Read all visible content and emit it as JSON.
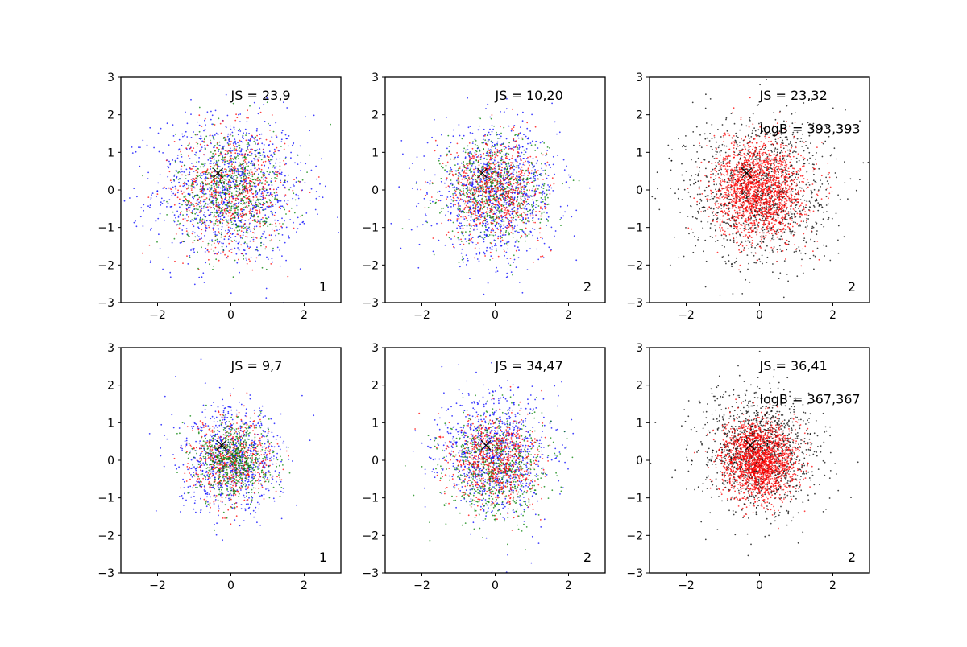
{
  "figure": {
    "background": "#ffffff"
  },
  "colors": {
    "blue": "#0000ff",
    "green": "#008000",
    "red": "#ff0000",
    "black": "#000000"
  },
  "chart_data": [
    {
      "type": "scatter",
      "xlim": [
        -3,
        3
      ],
      "ylim": [
        -3,
        3
      ],
      "xticks": [
        "−2",
        "0",
        "2"
      ],
      "yticks": [
        "−3",
        "−2",
        "−1",
        "0",
        "1",
        "2",
        "3"
      ],
      "annotations": [
        "JS = 23,9"
      ],
      "corner_label": "1",
      "marker": {
        "symbol": "x",
        "x": -0.35,
        "y": 0.45
      },
      "series": [
        {
          "color": "blue",
          "count": 1100,
          "sx": 1.05,
          "sy": 1.0,
          "mx": 0.0,
          "my": 0.0
        },
        {
          "color": "red",
          "count": 650,
          "sx": 0.75,
          "sy": 0.8,
          "mx": 0.0,
          "my": 0.0
        },
        {
          "color": "green",
          "count": 650,
          "sx": 0.75,
          "sy": 0.8,
          "mx": 0.0,
          "my": 0.0
        }
      ]
    },
    {
      "type": "scatter",
      "xlim": [
        -3,
        3
      ],
      "ylim": [
        -3,
        3
      ],
      "xticks": [
        "−2",
        "0",
        "2"
      ],
      "yticks": [
        "−3",
        "−2",
        "−1",
        "0",
        "1",
        "2",
        "3"
      ],
      "annotations": [
        "JS = 10,20"
      ],
      "corner_label": "2",
      "marker": {
        "symbol": "x",
        "x": -0.35,
        "y": 0.45
      },
      "series": [
        {
          "color": "blue",
          "count": 1000,
          "sx": 0.85,
          "sy": 0.85,
          "mx": 0.0,
          "my": -0.1
        },
        {
          "color": "green",
          "count": 700,
          "sx": 0.7,
          "sy": 0.7,
          "mx": 0.0,
          "my": 0.0
        },
        {
          "color": "red",
          "count": 700,
          "sx": 0.65,
          "sy": 0.65,
          "mx": 0.0,
          "my": 0.0
        }
      ]
    },
    {
      "type": "scatter",
      "xlim": [
        -3,
        3
      ],
      "ylim": [
        -3,
        3
      ],
      "xticks": [
        "−2",
        "0",
        "2"
      ],
      "yticks": [
        "−3",
        "−2",
        "−1",
        "0",
        "1",
        "2",
        "3"
      ],
      "annotations": [
        "JS = 23,32",
        "logB = 393,393"
      ],
      "corner_label": "2",
      "marker": {
        "symbol": "x",
        "x": -0.35,
        "y": 0.45
      },
      "series": [
        {
          "color": "black",
          "count": 1300,
          "sx": 1.0,
          "sy": 1.0,
          "mx": 0.0,
          "my": 0.0
        },
        {
          "color": "red",
          "count": 1800,
          "sx": 0.6,
          "sy": 0.65,
          "mx": 0.0,
          "my": 0.0
        }
      ]
    },
    {
      "type": "scatter",
      "xlim": [
        -3,
        3
      ],
      "ylim": [
        -3,
        3
      ],
      "xticks": [
        "−2",
        "0",
        "2"
      ],
      "yticks": [
        "−3",
        "−2",
        "−1",
        "0",
        "1",
        "2",
        "3"
      ],
      "annotations": [
        "JS = 9,7"
      ],
      "corner_label": "1",
      "marker": {
        "symbol": "x",
        "x": -0.25,
        "y": 0.4
      },
      "series": [
        {
          "color": "blue",
          "count": 800,
          "sx": 0.7,
          "sy": 0.7,
          "mx": 0.0,
          "my": 0.0
        },
        {
          "color": "red",
          "count": 550,
          "sx": 0.55,
          "sy": 0.55,
          "mx": 0.0,
          "my": 0.0
        },
        {
          "color": "green",
          "count": 650,
          "sx": 0.5,
          "sy": 0.5,
          "mx": 0.1,
          "my": 0.0
        }
      ]
    },
    {
      "type": "scatter",
      "xlim": [
        -3,
        3
      ],
      "ylim": [
        -3,
        3
      ],
      "xticks": [
        "−2",
        "0",
        "2"
      ],
      "yticks": [
        "−3",
        "−2",
        "−1",
        "0",
        "1",
        "2",
        "3"
      ],
      "annotations": [
        "JS = 34,47"
      ],
      "corner_label": "2",
      "marker": {
        "symbol": "x",
        "x": -0.25,
        "y": 0.4
      },
      "series": [
        {
          "color": "blue",
          "count": 900,
          "sx": 0.75,
          "sy": 0.8,
          "mx": 0.0,
          "my": 0.2
        },
        {
          "color": "green",
          "count": 700,
          "sx": 0.7,
          "sy": 0.7,
          "mx": 0.0,
          "my": -0.2
        },
        {
          "color": "red",
          "count": 700,
          "sx": 0.6,
          "sy": 0.6,
          "mx": 0.0,
          "my": 0.0
        }
      ]
    },
    {
      "type": "scatter",
      "xlim": [
        -3,
        3
      ],
      "ylim": [
        -3,
        3
      ],
      "xticks": [
        "−2",
        "0",
        "2"
      ],
      "yticks": [
        "−3",
        "−2",
        "−1",
        "0",
        "1",
        "2",
        "3"
      ],
      "annotations": [
        "JS = 36,41",
        "logB = 367,367"
      ],
      "corner_label": "2",
      "marker": {
        "symbol": "x",
        "x": -0.25,
        "y": 0.4
      },
      "series": [
        {
          "color": "black",
          "count": 1300,
          "sx": 0.8,
          "sy": 0.8,
          "mx": 0.0,
          "my": 0.2
        },
        {
          "color": "red",
          "count": 1800,
          "sx": 0.5,
          "sy": 0.5,
          "mx": 0.0,
          "my": 0.0
        }
      ]
    }
  ]
}
